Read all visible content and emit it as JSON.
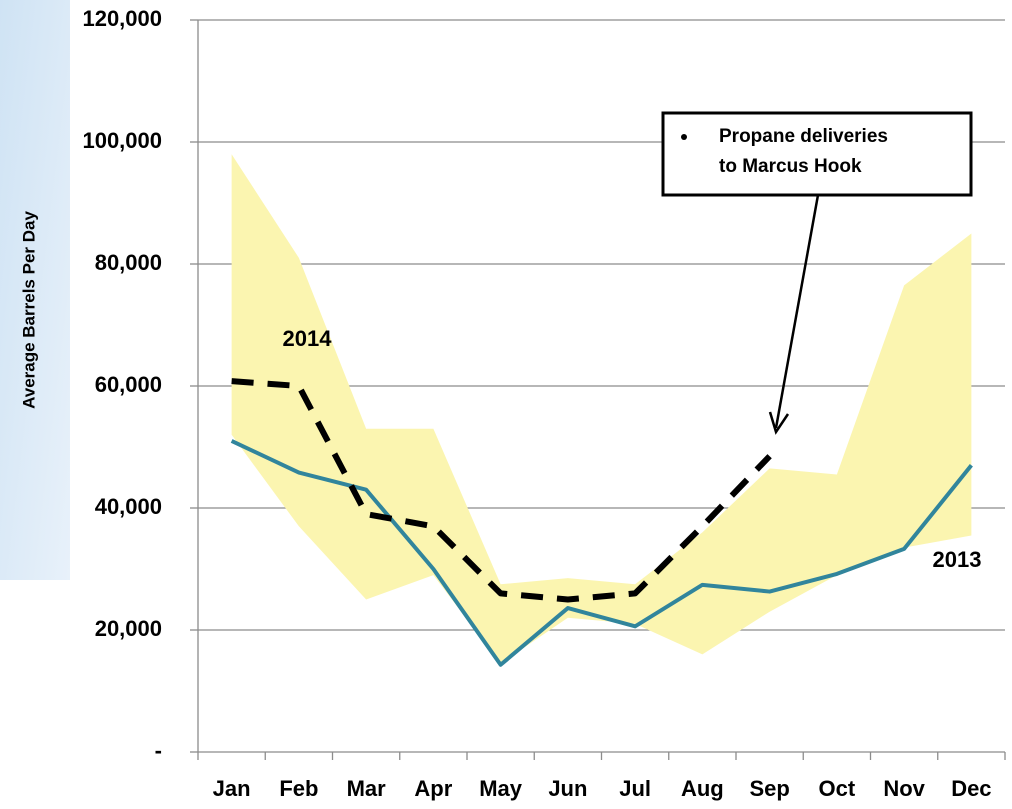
{
  "chart_data": {
    "type": "line",
    "ylabel": "Average Barrels Per Day",
    "categories": [
      "Jan",
      "Feb",
      "Mar",
      "Apr",
      "May",
      "Jun",
      "Jul",
      "Aug",
      "Sep",
      "Oct",
      "Nov",
      "Dec"
    ],
    "band": {
      "color": "#fbf5b0",
      "upper": [
        98000,
        81000,
        53000,
        53000,
        27500,
        28500,
        27500,
        36000,
        46500,
        45500,
        76500,
        85000
      ],
      "lower": [
        52000,
        37000,
        25000,
        29000,
        14500,
        22000,
        21000,
        16000,
        23000,
        29000,
        33500,
        35500
      ]
    },
    "series": [
      {
        "name": "2013",
        "color": "#31859c",
        "dash": false,
        "values": [
          51000,
          45800,
          43000,
          30000,
          14300,
          23600,
          20600,
          27400,
          26300,
          29200,
          33300,
          47000
        ]
      },
      {
        "name": "2014",
        "color": "#000000",
        "dash": true,
        "values": [
          60800,
          60000,
          39000,
          37000,
          26000,
          25000,
          26000,
          37000,
          48500,
          null,
          null,
          null
        ]
      }
    ],
    "annotation": [
      "Propane deliveries",
      "to Marcus Hook"
    ],
    "ylim": [
      0,
      120000
    ],
    "yticks": [
      {
        "value": 0,
        "label": "-"
      },
      {
        "value": 20000,
        "label": "20,000"
      },
      {
        "value": 40000,
        "label": "40,000"
      },
      {
        "value": 60000,
        "label": "60,000"
      },
      {
        "value": 80000,
        "label": "80,000"
      },
      {
        "value": 100000,
        "label": "100,000"
      },
      {
        "value": 120000,
        "label": "120,000"
      }
    ],
    "grid": true
  }
}
